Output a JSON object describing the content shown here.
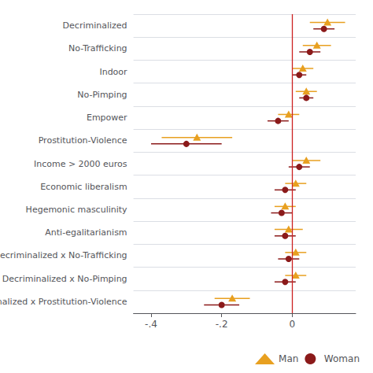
{
  "chart_data": {
    "type": "scatter",
    "categories": [
      "Decriminalized",
      "No-Trafficking",
      "Indoor",
      "No-Pimping",
      "Empower",
      "Prostitution-Violence",
      "Income > 2000 euros",
      "Economic liberalism",
      "Hegemonic masculinity",
      "Anti-egalitarianism",
      "Decriminalized x No-Trafficking",
      "Decriminalized x No-Pimping",
      "nalized x Prostitution-Violence"
    ],
    "series": [
      {
        "name": "Man",
        "color": "#E8A020",
        "marker": "triangle",
        "values": [
          0.1,
          0.07,
          0.03,
          0.04,
          -0.01,
          -0.27,
          0.04,
          0.01,
          -0.02,
          -0.01,
          0.01,
          0.01,
          -0.17
        ],
        "ci_low": [
          0.05,
          0.03,
          0.0,
          0.01,
          -0.04,
          -0.37,
          0.0,
          -0.02,
          -0.05,
          -0.05,
          -0.02,
          -0.02,
          -0.22
        ],
        "ci_high": [
          0.15,
          0.11,
          0.06,
          0.07,
          0.02,
          -0.17,
          0.08,
          0.04,
          0.01,
          0.03,
          0.04,
          0.04,
          -0.12
        ]
      },
      {
        "name": "Woman",
        "color": "#8B1A1A",
        "marker": "circle",
        "values": [
          0.09,
          0.05,
          0.02,
          0.04,
          -0.04,
          -0.3,
          0.02,
          -0.02,
          -0.03,
          -0.02,
          -0.01,
          -0.02,
          -0.2
        ],
        "ci_low": [
          0.06,
          0.02,
          0.0,
          0.02,
          -0.07,
          -0.4,
          -0.01,
          -0.05,
          -0.06,
          -0.05,
          -0.04,
          -0.05,
          -0.25
        ],
        "ci_high": [
          0.12,
          0.08,
          0.04,
          0.06,
          -0.01,
          -0.2,
          0.05,
          0.01,
          0.0,
          0.01,
          0.02,
          0.01,
          -0.15
        ]
      }
    ],
    "xlim": [
      -0.45,
      0.18
    ],
    "xticks": [
      {
        "value": -0.4,
        "label": "-.4"
      },
      {
        "value": -0.2,
        "label": "-.2"
      },
      0
    ],
    "grid": true,
    "legend": "lower right",
    "vline": {
      "value": 0,
      "color": "#CC2222"
    }
  }
}
